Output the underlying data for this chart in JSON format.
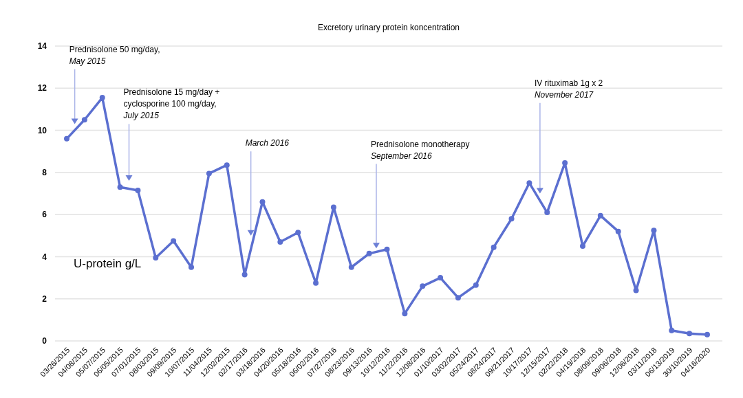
{
  "chart_data": {
    "type": "line",
    "title": "Excretory urinary protein koncentration",
    "ylabel": "U-protein g/L",
    "categories": [
      "03/26/2015",
      "04/08/2015",
      "05/07/2015",
      "06/05/2015",
      "07/01/2015",
      "08/03/2015",
      "09/09/2015",
      "10/07/2015",
      "11/04/2015",
      "12/02/2015",
      "02/17/2016",
      "03/18/2016",
      "04/20/2016",
      "05/18/2016",
      "06/02/2016",
      "07/27/2016",
      "08/23/2016",
      "09/13/2016",
      "10/12/2016",
      "11/22/2016",
      "12/08/2016",
      "01/10/2017",
      "03/02/2017",
      "05/24/2017",
      "08/24/2017",
      "09/21/2017",
      "10/17/2017",
      "12/15/2017",
      "02/22/2018",
      "04/19/2018",
      "08/09/2018",
      "09/06/2018",
      "12/06/2018",
      "03/11/2018",
      "06/13/2019",
      "30/10/2019",
      "04/16/2020"
    ],
    "series": [
      {
        "color": "#5b6fd0",
        "values": [
          9.6,
          10.5,
          11.55,
          7.3,
          7.15,
          3.95,
          4.75,
          3.5,
          7.95,
          8.35,
          3.15,
          6.6,
          4.7,
          5.15,
          2.75,
          6.35,
          3.5,
          4.15,
          4.35,
          1.3,
          2.6,
          3.0,
          2.05,
          2.65,
          4.45,
          5.8,
          7.5,
          6.1,
          8.45,
          4.5,
          5.95,
          5.2,
          2.4,
          5.25,
          0.5,
          0.35,
          0.3
        ]
      }
    ],
    "ylim": [
      0,
      14
    ],
    "yticks": [
      0,
      2,
      4,
      6,
      8,
      10,
      12,
      14
    ],
    "grid": "y",
    "marker": "circle",
    "annotations": [
      "Prednisolone 50 mg/day,\nMay 2015",
      "Prednisolone 15 mg/day +\ncyclosporine 100 mg/day,\nJuly 2015",
      "March 2016",
      "Prednisolone monotherapy\nSeptember 2016",
      "IV rituximab 1g x 2\nNovember 2017"
    ]
  }
}
